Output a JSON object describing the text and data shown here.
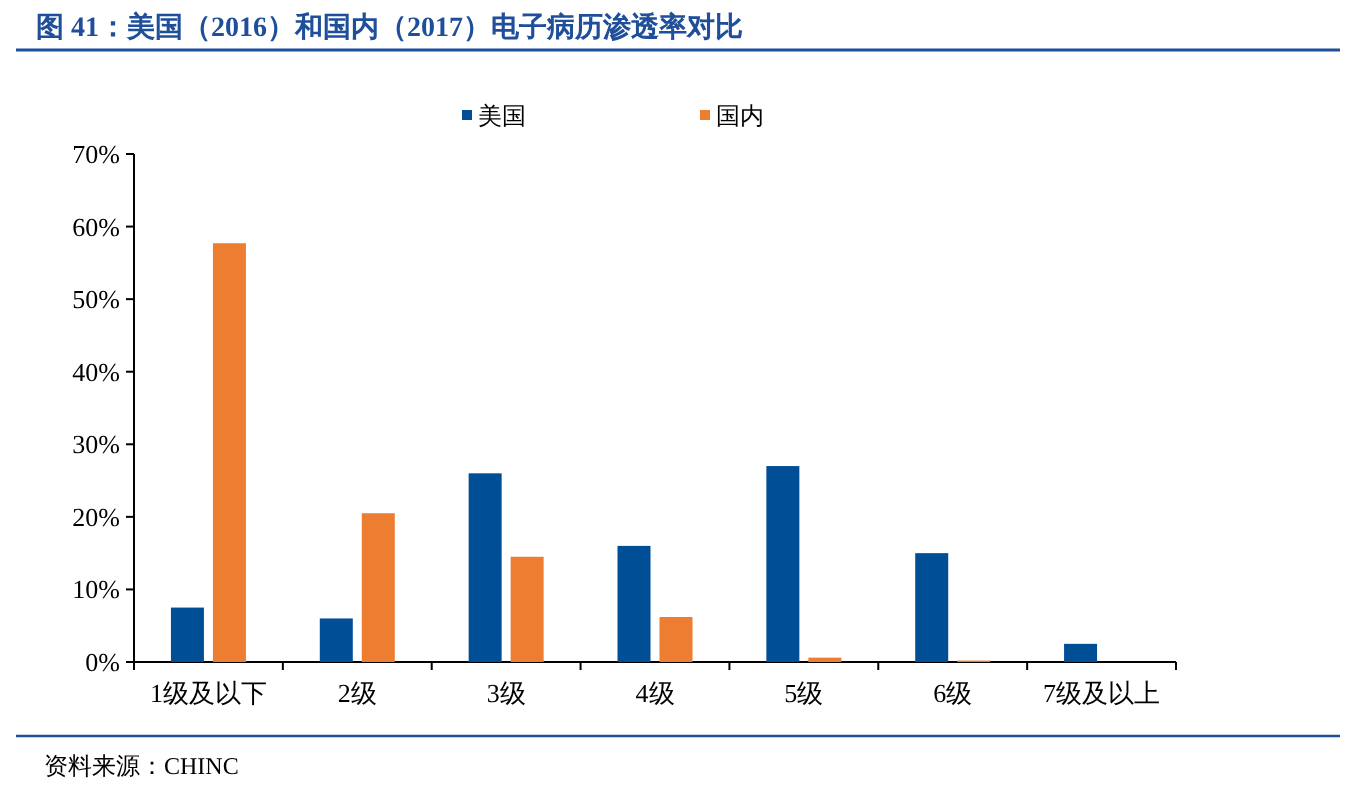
{
  "chart_data": {
    "type": "bar",
    "title": "图 41：美国（2016）和国内（2017）电子病历渗透率对比",
    "categories": [
      "1级及以下",
      "2级",
      "3级",
      "4级",
      "5级",
      "6级",
      "7级及以上"
    ],
    "series": [
      {
        "name": "美国",
        "color": "#004e96",
        "values": [
          7.5,
          6,
          26,
          16,
          27,
          15,
          2.5
        ]
      },
      {
        "name": "国内",
        "color": "#ed7d31",
        "values": [
          57.7,
          20.5,
          14.5,
          6.2,
          0.6,
          0.2,
          0
        ]
      }
    ],
    "ylim": [
      0,
      70
    ],
    "yticks": [
      {
        "value": 0,
        "label": "0%"
      },
      {
        "value": 10,
        "label": "10%"
      },
      {
        "value": 20,
        "label": "20%"
      },
      {
        "value": 30,
        "label": "30%"
      },
      {
        "value": 40,
        "label": "40%"
      },
      {
        "value": 50,
        "label": "50%"
      },
      {
        "value": 60,
        "label": "60%"
      },
      {
        "value": 70,
        "label": "70%"
      }
    ],
    "legend": "top",
    "grid": false,
    "annotations": [
      "资料来源：CHINC"
    ]
  }
}
